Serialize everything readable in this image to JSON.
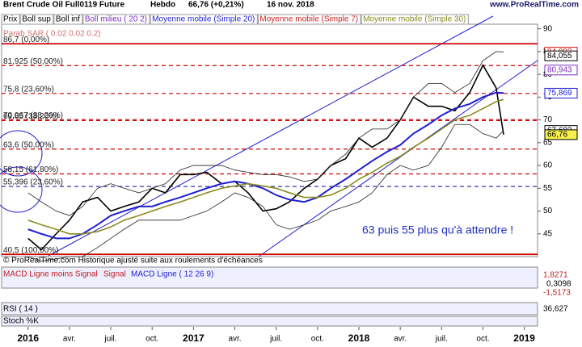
{
  "header": {
    "title": "Brent Crude Oil Full0119 Future",
    "period": "Hebdo",
    "price": "66,76 (+0,21%)",
    "date": "16 nov. 2018",
    "site": "www.ProRealTime.com"
  },
  "chart_data": {
    "type": "line",
    "legend": [
      {
        "name": "Prix",
        "color": "#000000"
      },
      {
        "name": "Boll sup",
        "color": "#000000"
      },
      {
        "name": "Boll inf",
        "color": "#000000"
      },
      {
        "name": "Boll milieu ( 20 2)",
        "color": "#7b2fbf"
      },
      {
        "name": "Moyenne mobile (Simple 20)",
        "color": "#1f1fd0"
      },
      {
        "name": "Moyenne mobile (Simple 7)",
        "color": "#d02020"
      },
      {
        "name": "Moyenne mobile (Simple 30)",
        "color": "#8a8a20"
      }
    ],
    "sar_label": "Parab SAR ( 0.02 0.02 0.2)",
    "x": [
      2016.0,
      2016.08,
      2016.17,
      2016.25,
      2016.33,
      2016.42,
      2016.5,
      2016.58,
      2016.67,
      2016.75,
      2016.83,
      2016.92,
      2017.0,
      2017.08,
      2017.17,
      2017.25,
      2017.33,
      2017.42,
      2017.5,
      2017.58,
      2017.67,
      2017.75,
      2017.83,
      2017.92,
      2018.0,
      2018.08,
      2018.17,
      2018.25,
      2018.33,
      2018.42,
      2018.5,
      2018.58,
      2018.67,
      2018.75,
      2018.83,
      2018.875
    ],
    "series": [
      {
        "name": "Prix",
        "color": "#000000",
        "width": 1.6,
        "values": [
          44,
          41.5,
          45,
          48,
          52,
          53,
          50,
          51,
          52,
          55,
          54,
          58,
          58,
          58.5,
          56,
          56.5,
          54,
          50,
          50.5,
          52,
          55,
          57,
          60,
          61.5,
          66,
          64,
          66,
          70,
          75,
          73,
          73,
          72,
          76,
          82,
          77,
          66.76
        ]
      },
      {
        "name": "Boll sup",
        "color": "#222222",
        "width": 0.8,
        "values": [
          54,
          52,
          50,
          49,
          51,
          55,
          56,
          55,
          54,
          55,
          56,
          59,
          60,
          60,
          60,
          59,
          58.5,
          58,
          58,
          57.5,
          56.5,
          57,
          60,
          62.5,
          66,
          68,
          68,
          70,
          75,
          78,
          78,
          76,
          78,
          83,
          85,
          84.9
        ]
      },
      {
        "name": "Boll inf",
        "color": "#222222",
        "width": 0.8,
        "values": [
          40,
          39,
          39.5,
          40,
          40,
          42,
          44,
          46,
          48,
          48,
          48,
          48,
          49,
          50,
          52,
          54,
          53,
          51,
          47,
          46,
          47,
          48,
          50,
          51,
          52,
          54,
          58,
          60,
          59,
          60,
          64,
          69,
          69,
          67,
          66,
          67.7
        ]
      },
      {
        "name": "Moyenne mobile (Simple 20)",
        "color": "#1f1fd0",
        "width": 2,
        "values": [
          46,
          45,
          44,
          44,
          45,
          47,
          49,
          50,
          51,
          51,
          52,
          53,
          54,
          55,
          56,
          56.5,
          56,
          55,
          53.5,
          52.5,
          52,
          53,
          55,
          57,
          59,
          61,
          63,
          64.5,
          67,
          69,
          71,
          72.5,
          73.5,
          75,
          76,
          75.9
        ]
      },
      {
        "name": "Moyenne mobile (Simple 30)",
        "color": "#8a8a20",
        "width": 1.6,
        "values": [
          48,
          47,
          46,
          45,
          45,
          45.5,
          46.5,
          48,
          49,
          50,
          51,
          52,
          53,
          54,
          55,
          55.5,
          56,
          55.5,
          55,
          54,
          53,
          53,
          53.5,
          55,
          57,
          58.5,
          60.5,
          62,
          64,
          66,
          68,
          70,
          71,
          72.5,
          74,
          74.5
        ]
      }
    ],
    "xlim": [
      2015.84,
      2019.08
    ],
    "ylim": [
      40,
      91
    ],
    "xticks": [
      {
        "value": 2016,
        "label": "2016"
      },
      {
        "value": 2016.25,
        "label": "avr."
      },
      {
        "value": 2016.5,
        "label": "juil."
      },
      {
        "value": 2016.75,
        "label": "oct."
      },
      {
        "value": 2017,
        "label": "2017"
      },
      {
        "value": 2017.25,
        "label": "avr."
      },
      {
        "value": 2017.5,
        "label": "juil."
      },
      {
        "value": 2017.75,
        "label": "oct."
      },
      {
        "value": 2018,
        "label": "2018"
      },
      {
        "value": 2018.25,
        "label": "avr."
      },
      {
        "value": 2018.5,
        "label": "juil."
      },
      {
        "value": 2018.75,
        "label": "oct."
      },
      {
        "value": 2019,
        "label": "2019"
      }
    ],
    "yticks": [
      45,
      50,
      55,
      60,
      65,
      70,
      75,
      80,
      85,
      90
    ],
    "levels": [
      {
        "value": 86.7,
        "label": "86,7 (0,00%)",
        "color": "#d00000",
        "dash": false
      },
      {
        "value": 81.925,
        "label": "81,925 (50,00%)",
        "color": "#d00000",
        "dash": true
      },
      {
        "value": 75.8,
        "label": "75,8 (23,60%)",
        "color": "#d00000",
        "dash": true
      },
      {
        "value": 70.067,
        "label": "70,067 (38,20%)",
        "color": "#d00000",
        "dash": true
      },
      {
        "value": 69.85,
        "label": "69,85 (38,20%)",
        "color": "#d00000",
        "dash": true
      },
      {
        "value": 63.6,
        "label": "63,6 (50,00%)",
        "color": "#d00000",
        "dash": true
      },
      {
        "value": 58.15,
        "label": "58,15 (61,80%)",
        "color": "#d00000",
        "dash": true
      },
      {
        "value": 55.396,
        "label": "55,396 (23,60%)",
        "color": "#2020a0",
        "dash": true
      },
      {
        "value": 40.5,
        "label": "40,5 (100,00%)",
        "color": "#d00000",
        "dash": false
      }
    ],
    "price_tags": [
      {
        "value": 84.892,
        "label": "84,892",
        "color": "#d02020",
        "bg": "#ffffff"
      },
      {
        "value": 84.055,
        "label": "84,055",
        "color": "#000000",
        "bg": "#ffffff"
      },
      {
        "value": 80.943,
        "label": "80,943",
        "color": "#7b2fbf",
        "bg": "#ffffff"
      },
      {
        "value": 75.869,
        "label": "75,869",
        "color": "#1f1fd0",
        "bg": "#ffffff"
      },
      {
        "value": 67.683,
        "label": "67,683",
        "color": "#000000",
        "bg": "#ffffff"
      },
      {
        "value": 66.76,
        "label": "66,76",
        "color": "#000000",
        "bg": "#f5f04a"
      }
    ],
    "annotation": "63 puis 55 plus qu'à attendre !",
    "footnote": "© ProRealTime.com Historique ajusté suite aux roulements d'échéances"
  },
  "panels": {
    "macd": {
      "labels": [
        "MACD Ligne moins Signal",
        "Signal",
        "MACD Ligne ( 12 26 9)"
      ],
      "tags": [
        "1,8271",
        "0,3098",
        "-1,5173"
      ]
    },
    "rsi": {
      "label": "RSI ( 14 )",
      "tag": "36,627"
    },
    "stoch": {
      "label": "Stoch %K"
    }
  }
}
